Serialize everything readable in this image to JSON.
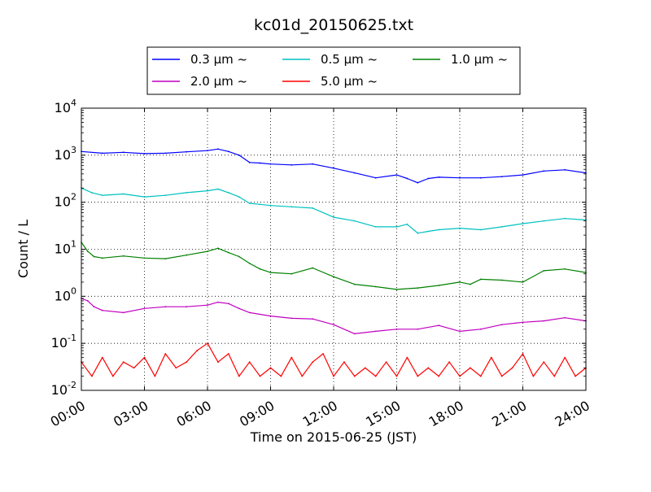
{
  "chart_data": {
    "type": "line",
    "title": "kc01d_20150625.txt",
    "xlabel": "Time on 2015-06-25 (JST)",
    "ylabel": "Count / L",
    "y_scale": "log",
    "ylim_exp": [
      -2,
      4
    ],
    "xlim_hours": [
      0,
      24
    ],
    "grid": true,
    "legend_position": "top-center",
    "x_ticks": [
      "00:00",
      "03:00",
      "06:00",
      "09:00",
      "12:00",
      "15:00",
      "18:00",
      "21:00",
      "24:00"
    ],
    "y_ticks": [
      {
        "base": "10",
        "exp": "-2"
      },
      {
        "base": "10",
        "exp": "-1"
      },
      {
        "base": "10",
        "exp": "0"
      },
      {
        "base": "10",
        "exp": "1"
      },
      {
        "base": "10",
        "exp": "2"
      },
      {
        "base": "10",
        "exp": "3"
      },
      {
        "base": "10",
        "exp": "4"
      }
    ],
    "series": [
      {
        "name": "0.3 μm ~",
        "color": "#0000ff",
        "x": [
          0,
          1,
          2,
          3,
          4,
          5,
          6,
          6.5,
          7,
          7.5,
          8,
          8.5,
          9,
          10,
          11,
          12,
          13,
          14,
          15,
          15.5,
          16,
          16.5,
          17,
          18,
          19,
          20,
          21,
          22,
          23,
          24
        ],
        "y": [
          1200,
          1100,
          1150,
          1080,
          1100,
          1180,
          1250,
          1350,
          1200,
          1000,
          700,
          680,
          650,
          620,
          650,
          530,
          420,
          330,
          380,
          320,
          260,
          320,
          340,
          330,
          330,
          350,
          380,
          460,
          490,
          420
        ]
      },
      {
        "name": "0.5 μm ~",
        "color": "#00c0c0",
        "x": [
          0,
          0.5,
          1,
          2,
          3,
          4,
          5,
          6,
          6.5,
          7,
          7.5,
          8,
          8.5,
          9,
          10,
          11,
          12,
          13,
          14,
          15,
          15.5,
          16,
          16.5,
          17,
          18,
          19,
          20,
          21,
          22,
          23,
          24
        ],
        "y": [
          200,
          160,
          140,
          150,
          130,
          140,
          160,
          175,
          190,
          160,
          130,
          95,
          90,
          85,
          80,
          75,
          48,
          40,
          30,
          30,
          34,
          22,
          24,
          26,
          28,
          26,
          30,
          35,
          40,
          45,
          42
        ]
      },
      {
        "name": "1.0 μm ~",
        "color": "#008000",
        "x": [
          0,
          0.3,
          0.6,
          1,
          2,
          3,
          4,
          5,
          6,
          6.5,
          7,
          7.5,
          8,
          8.5,
          9,
          10,
          11,
          12,
          13,
          14,
          15,
          16,
          17,
          18,
          18.5,
          19,
          20,
          21,
          22,
          23,
          24
        ],
        "y": [
          14,
          9,
          7,
          6.5,
          7.2,
          6.5,
          6.3,
          7.5,
          9,
          10.5,
          8.5,
          7,
          5,
          3.8,
          3.2,
          3,
          4,
          2.6,
          1.8,
          1.6,
          1.4,
          1.5,
          1.7,
          2,
          1.8,
          2.3,
          2.2,
          2,
          3.5,
          3.8,
          3.2
        ]
      },
      {
        "name": "2.0 μm ~",
        "color": "#c000c0",
        "x": [
          0,
          0.3,
          0.6,
          1,
          2,
          3,
          4,
          5,
          6,
          6.5,
          7,
          7.5,
          8,
          9,
          10,
          11,
          12,
          13,
          14,
          15,
          16,
          17,
          18,
          19,
          20,
          21,
          22,
          23,
          24
        ],
        "y": [
          0.9,
          0.8,
          0.6,
          0.5,
          0.45,
          0.55,
          0.6,
          0.6,
          0.65,
          0.75,
          0.7,
          0.55,
          0.45,
          0.38,
          0.34,
          0.33,
          0.25,
          0.16,
          0.18,
          0.2,
          0.2,
          0.24,
          0.18,
          0.2,
          0.25,
          0.28,
          0.3,
          0.35,
          0.3
        ]
      },
      {
        "name": "5.0 μm ~",
        "color": "#ff0000",
        "x": [
          0,
          0.5,
          1,
          1.5,
          2,
          2.5,
          3,
          3.5,
          4,
          4.5,
          5,
          5.5,
          6,
          6.5,
          7,
          7.5,
          8,
          8.5,
          9,
          9.5,
          10,
          10.5,
          11,
          11.5,
          12,
          12.5,
          13,
          13.5,
          14,
          14.5,
          15,
          15.5,
          16,
          16.5,
          17,
          17.5,
          18,
          18.5,
          19,
          19.5,
          20,
          20.5,
          21,
          21.5,
          22,
          22.5,
          23,
          23.5,
          24
        ],
        "y": [
          0.04,
          0.02,
          0.05,
          0.02,
          0.04,
          0.03,
          0.05,
          0.02,
          0.06,
          0.03,
          0.04,
          0.07,
          0.1,
          0.04,
          0.06,
          0.02,
          0.04,
          0.02,
          0.03,
          0.02,
          0.05,
          0.02,
          0.04,
          0.06,
          0.02,
          0.04,
          0.02,
          0.03,
          0.02,
          0.04,
          0.02,
          0.05,
          0.02,
          0.03,
          0.02,
          0.04,
          0.02,
          0.03,
          0.02,
          0.05,
          0.02,
          0.03,
          0.06,
          0.02,
          0.04,
          0.02,
          0.05,
          0.02,
          0.03
        ]
      }
    ]
  }
}
